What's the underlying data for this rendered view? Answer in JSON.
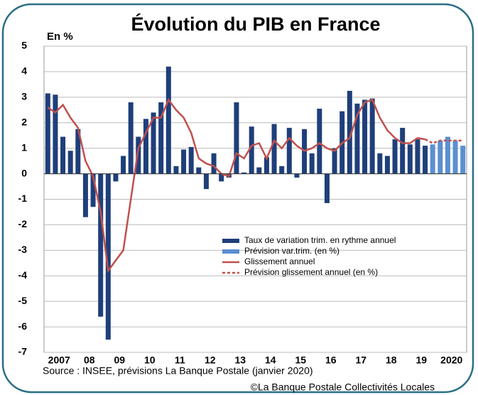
{
  "chart_data": {
    "type": "bar-line",
    "title": "Évolution du PIB en France",
    "y_label": "En %",
    "source": "Source : INSEE, prévisions La Banque Postale (janvier 2020)",
    "copyright": "©La Banque Postale Collectivités Locales",
    "x": [
      2007.125,
      2007.375,
      2007.625,
      2007.875,
      2008.125,
      2008.375,
      2008.625,
      2008.875,
      2009.125,
      2009.375,
      2009.625,
      2009.875,
      2010.125,
      2010.375,
      2010.625,
      2010.875,
      2011.125,
      2011.375,
      2011.625,
      2011.875,
      2012.125,
      2012.375,
      2012.625,
      2012.875,
      2013.125,
      2013.375,
      2013.625,
      2013.875,
      2014.125,
      2014.375,
      2014.625,
      2014.875,
      2015.125,
      2015.375,
      2015.625,
      2015.875,
      2016.125,
      2016.375,
      2016.625,
      2016.875,
      2017.125,
      2017.375,
      2017.625,
      2017.875,
      2018.125,
      2018.375,
      2018.625,
      2018.875,
      2019.125,
      2019.375,
      2019.625,
      2019.875,
      2020.125,
      2020.375,
      2020.625,
      2020.875
    ],
    "series": [
      {
        "name": "Taux de variation trim. en rythme annuel",
        "type": "bar",
        "color": "#1f3f7a",
        "values": [
          3.15,
          3.1,
          1.45,
          0.9,
          1.75,
          -1.7,
          -1.3,
          -5.6,
          -6.5,
          -0.3,
          0.7,
          2.8,
          1.45,
          2.15,
          2.4,
          2.8,
          4.2,
          0.3,
          0.95,
          1.05,
          0.25,
          -0.6,
          0.8,
          -0.3,
          -0.15,
          2.8,
          0.05,
          1.85,
          0.25,
          0.65,
          1.95,
          0.3,
          1.8,
          -0.15,
          1.75,
          0.8,
          2.55,
          -1.15,
          1.0,
          2.45,
          3.25,
          2.75,
          2.9,
          2.95,
          0.8,
          0.7,
          1.35,
          1.8,
          1.15,
          1.35,
          1.1,
          null,
          null,
          null,
          null,
          null
        ]
      },
      {
        "name": "Prévision var.trim. (en %)",
        "type": "bar",
        "color": "#5b8fd0",
        "values": [
          null,
          null,
          null,
          null,
          null,
          null,
          null,
          null,
          null,
          null,
          null,
          null,
          null,
          null,
          null,
          null,
          null,
          null,
          null,
          null,
          null,
          null,
          null,
          null,
          null,
          null,
          null,
          null,
          null,
          null,
          null,
          null,
          null,
          null,
          null,
          null,
          null,
          null,
          null,
          null,
          null,
          null,
          null,
          null,
          null,
          null,
          null,
          null,
          null,
          null,
          null,
          1.15,
          1.3,
          1.45,
          1.3,
          1.1
        ]
      },
      {
        "name": "Glissement annuel",
        "type": "line",
        "color": "#c0504d",
        "values": [
          2.6,
          2.4,
          2.7,
          2.2,
          1.8,
          0.5,
          -0.1,
          -1.5,
          -3.8,
          -3.4,
          -3.0,
          -1.0,
          1.0,
          1.6,
          2.2,
          2.2,
          2.9,
          2.5,
          2.2,
          1.6,
          0.6,
          0.4,
          0.3,
          0.0,
          -0.1,
          0.8,
          0.6,
          1.1,
          1.2,
          0.6,
          1.3,
          1.0,
          1.4,
          1.1,
          0.9,
          1.0,
          1.2,
          1.0,
          0.9,
          1.2,
          1.4,
          2.3,
          2.8,
          2.9,
          2.2,
          1.7,
          1.4,
          1.2,
          1.2,
          1.4,
          1.35,
          null,
          null,
          null,
          null,
          null
        ]
      },
      {
        "name": "Prévision glissement annuel (en %)",
        "type": "line",
        "dashed": true,
        "color": "#c0504d",
        "values": [
          null,
          null,
          null,
          null,
          null,
          null,
          null,
          null,
          null,
          null,
          null,
          null,
          null,
          null,
          null,
          null,
          null,
          null,
          null,
          null,
          null,
          null,
          null,
          null,
          null,
          null,
          null,
          null,
          null,
          null,
          null,
          null,
          null,
          null,
          null,
          null,
          null,
          null,
          null,
          null,
          null,
          null,
          null,
          null,
          null,
          null,
          null,
          null,
          null,
          null,
          1.35,
          1.2,
          1.3,
          1.3,
          1.3,
          1.3
        ]
      }
    ],
    "xlim": [
      2007,
      2021
    ],
    "xticks": [
      {
        "value": 2007.5,
        "label": "2007"
      },
      {
        "value": 2008.5,
        "label": "08"
      },
      {
        "value": 2009.5,
        "label": "09"
      },
      {
        "value": 2010.5,
        "label": "10"
      },
      {
        "value": 2011.5,
        "label": "11"
      },
      {
        "value": 2012.5,
        "label": "12"
      },
      {
        "value": 2013.5,
        "label": "13"
      },
      {
        "value": 2014.5,
        "label": "14"
      },
      {
        "value": 2015.5,
        "label": "15"
      },
      {
        "value": 2016.5,
        "label": "16"
      },
      {
        "value": 2017.5,
        "label": "17"
      },
      {
        "value": 2018.5,
        "label": "18"
      },
      {
        "value": 2019.5,
        "label": "19"
      },
      {
        "value": 2020.5,
        "label": "2020"
      }
    ],
    "ylim": [
      -7,
      5
    ],
    "yticks": [
      -7,
      -6,
      -5,
      -4,
      -3,
      -2,
      -1,
      0,
      1,
      2,
      3,
      4,
      5
    ],
    "grid": true
  }
}
